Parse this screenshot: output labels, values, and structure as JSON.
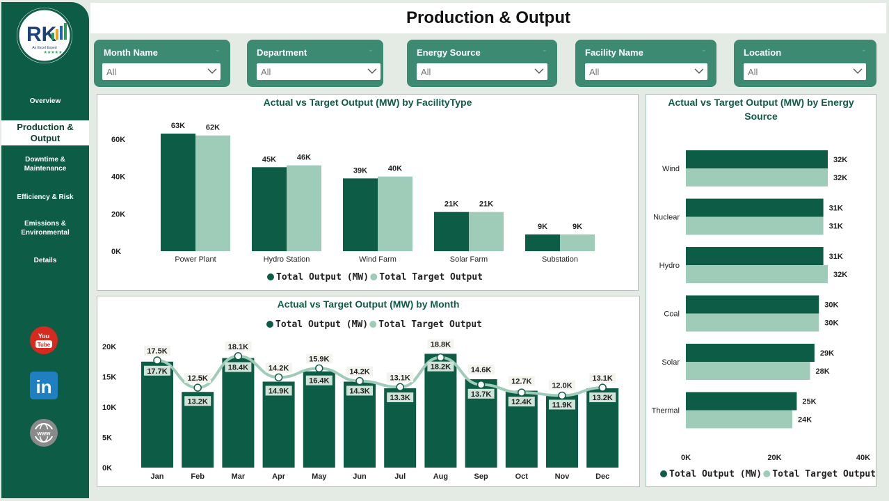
{
  "header": {
    "title": "Production & Output"
  },
  "sidebar": {
    "logo": {
      "initials": "RK",
      "tagline": "An Excel Expert",
      "stars": "★★★★★"
    },
    "items": [
      {
        "label": "Overview",
        "active": false
      },
      {
        "label": "Production & Output",
        "active": true
      },
      {
        "label": "Downtime & Maintenance",
        "active": false
      },
      {
        "label": "Efficiency & Risk",
        "active": false
      },
      {
        "label": "Emissions & Environmental",
        "active": false
      },
      {
        "label": "Details",
        "active": false
      }
    ],
    "social": [
      {
        "name": "youtube-icon",
        "text": "You Tube",
        "color": "#d62a1e"
      },
      {
        "name": "linkedin-icon",
        "text": "in",
        "color": "#1f7fc0"
      },
      {
        "name": "globe-icon",
        "text": "www",
        "color": "#8a8a8a"
      }
    ]
  },
  "filters": [
    {
      "label": "Month Name",
      "value": "All"
    },
    {
      "label": "Department",
      "value": "All"
    },
    {
      "label": "Energy Source",
      "value": "All"
    },
    {
      "label": "Facility Name",
      "value": "All"
    },
    {
      "label": "Location",
      "value": "All"
    }
  ],
  "colors": {
    "output": "#0d5c45",
    "target": "#9fccb8",
    "accent": "#3d8a72"
  },
  "chart_data": [
    {
      "id": "facility",
      "type": "bar",
      "title": "Actual vs Target Output (MW) by FacilityType",
      "categories": [
        "Power Plant",
        "Hydro Station",
        "Wind Farm",
        "Solar Farm",
        "Substation"
      ],
      "series": [
        {
          "name": "Total Output (MW)",
          "values": [
            63,
            45,
            39,
            21,
            9
          ],
          "labels": [
            "63K",
            "45K",
            "39K",
            "21K",
            "9K"
          ]
        },
        {
          "name": "Total Target Output",
          "values": [
            62,
            46,
            40,
            21,
            9
          ],
          "labels": [
            "62K",
            "46K",
            "40K",
            "21K",
            "9K"
          ]
        }
      ],
      "yticks": [
        "0K",
        "20K",
        "40K",
        "60K"
      ],
      "ylim": [
        0,
        63
      ],
      "unit": "K"
    },
    {
      "id": "energy",
      "type": "bar",
      "title": "Actual vs Target Output (MW) by Energy Source",
      "categories": [
        "Wind",
        "Nuclear",
        "Hydro",
        "Coal",
        "Solar",
        "Thermal"
      ],
      "series": [
        {
          "name": "Total Output (MW)",
          "values": [
            32,
            31,
            31,
            30,
            29,
            25
          ],
          "labels": [
            "32K",
            "31K",
            "31K",
            "30K",
            "29K",
            "25K"
          ]
        },
        {
          "name": "Total Target Output",
          "values": [
            32,
            31,
            32,
            30,
            28,
            24
          ],
          "labels": [
            "32K",
            "31K",
            "32K",
            "30K",
            "28K",
            "24K"
          ]
        }
      ],
      "xticks": [
        "0K",
        "20K",
        "40K"
      ],
      "xlim": [
        0,
        40
      ],
      "unit": "K"
    },
    {
      "id": "month",
      "type": "bar",
      "title": "Actual vs Target Output (MW) by Month",
      "categories": [
        "Jan",
        "Feb",
        "Mar",
        "Apr",
        "May",
        "Jun",
        "Jul",
        "Aug",
        "Sep",
        "Oct",
        "Nov",
        "Dec"
      ],
      "series": [
        {
          "name": "Total Output (MW)",
          "values": [
            17.5,
            12.5,
            18.1,
            14.2,
            15.9,
            14.2,
            13.1,
            18.8,
            14.6,
            12.7,
            12.0,
            13.1
          ],
          "labels": [
            "17.5K",
            "12.5K",
            "18.1K",
            "14.2K",
            "15.9K",
            "14.2K",
            "13.1K",
            "18.8K",
            "14.6K",
            "12.7K",
            "12.0K",
            "13.1K"
          ]
        },
        {
          "name": "Total Target Output",
          "values": [
            17.7,
            13.2,
            18.4,
            14.9,
            16.4,
            14.3,
            13.3,
            18.2,
            13.7,
            12.4,
            11.9,
            13.2
          ],
          "labels": [
            "17.7K",
            "13.2K",
            "18.4K",
            "14.9K",
            "16.4K",
            "14.3K",
            "13.3K",
            "18.2K",
            "13.7K",
            "12.4K",
            "11.9K",
            "13.2K"
          ]
        }
      ],
      "yticks": [
        "0K",
        "5K",
        "10K",
        "15K",
        "20K"
      ],
      "ylim": [
        0,
        20
      ],
      "unit": "K"
    }
  ]
}
